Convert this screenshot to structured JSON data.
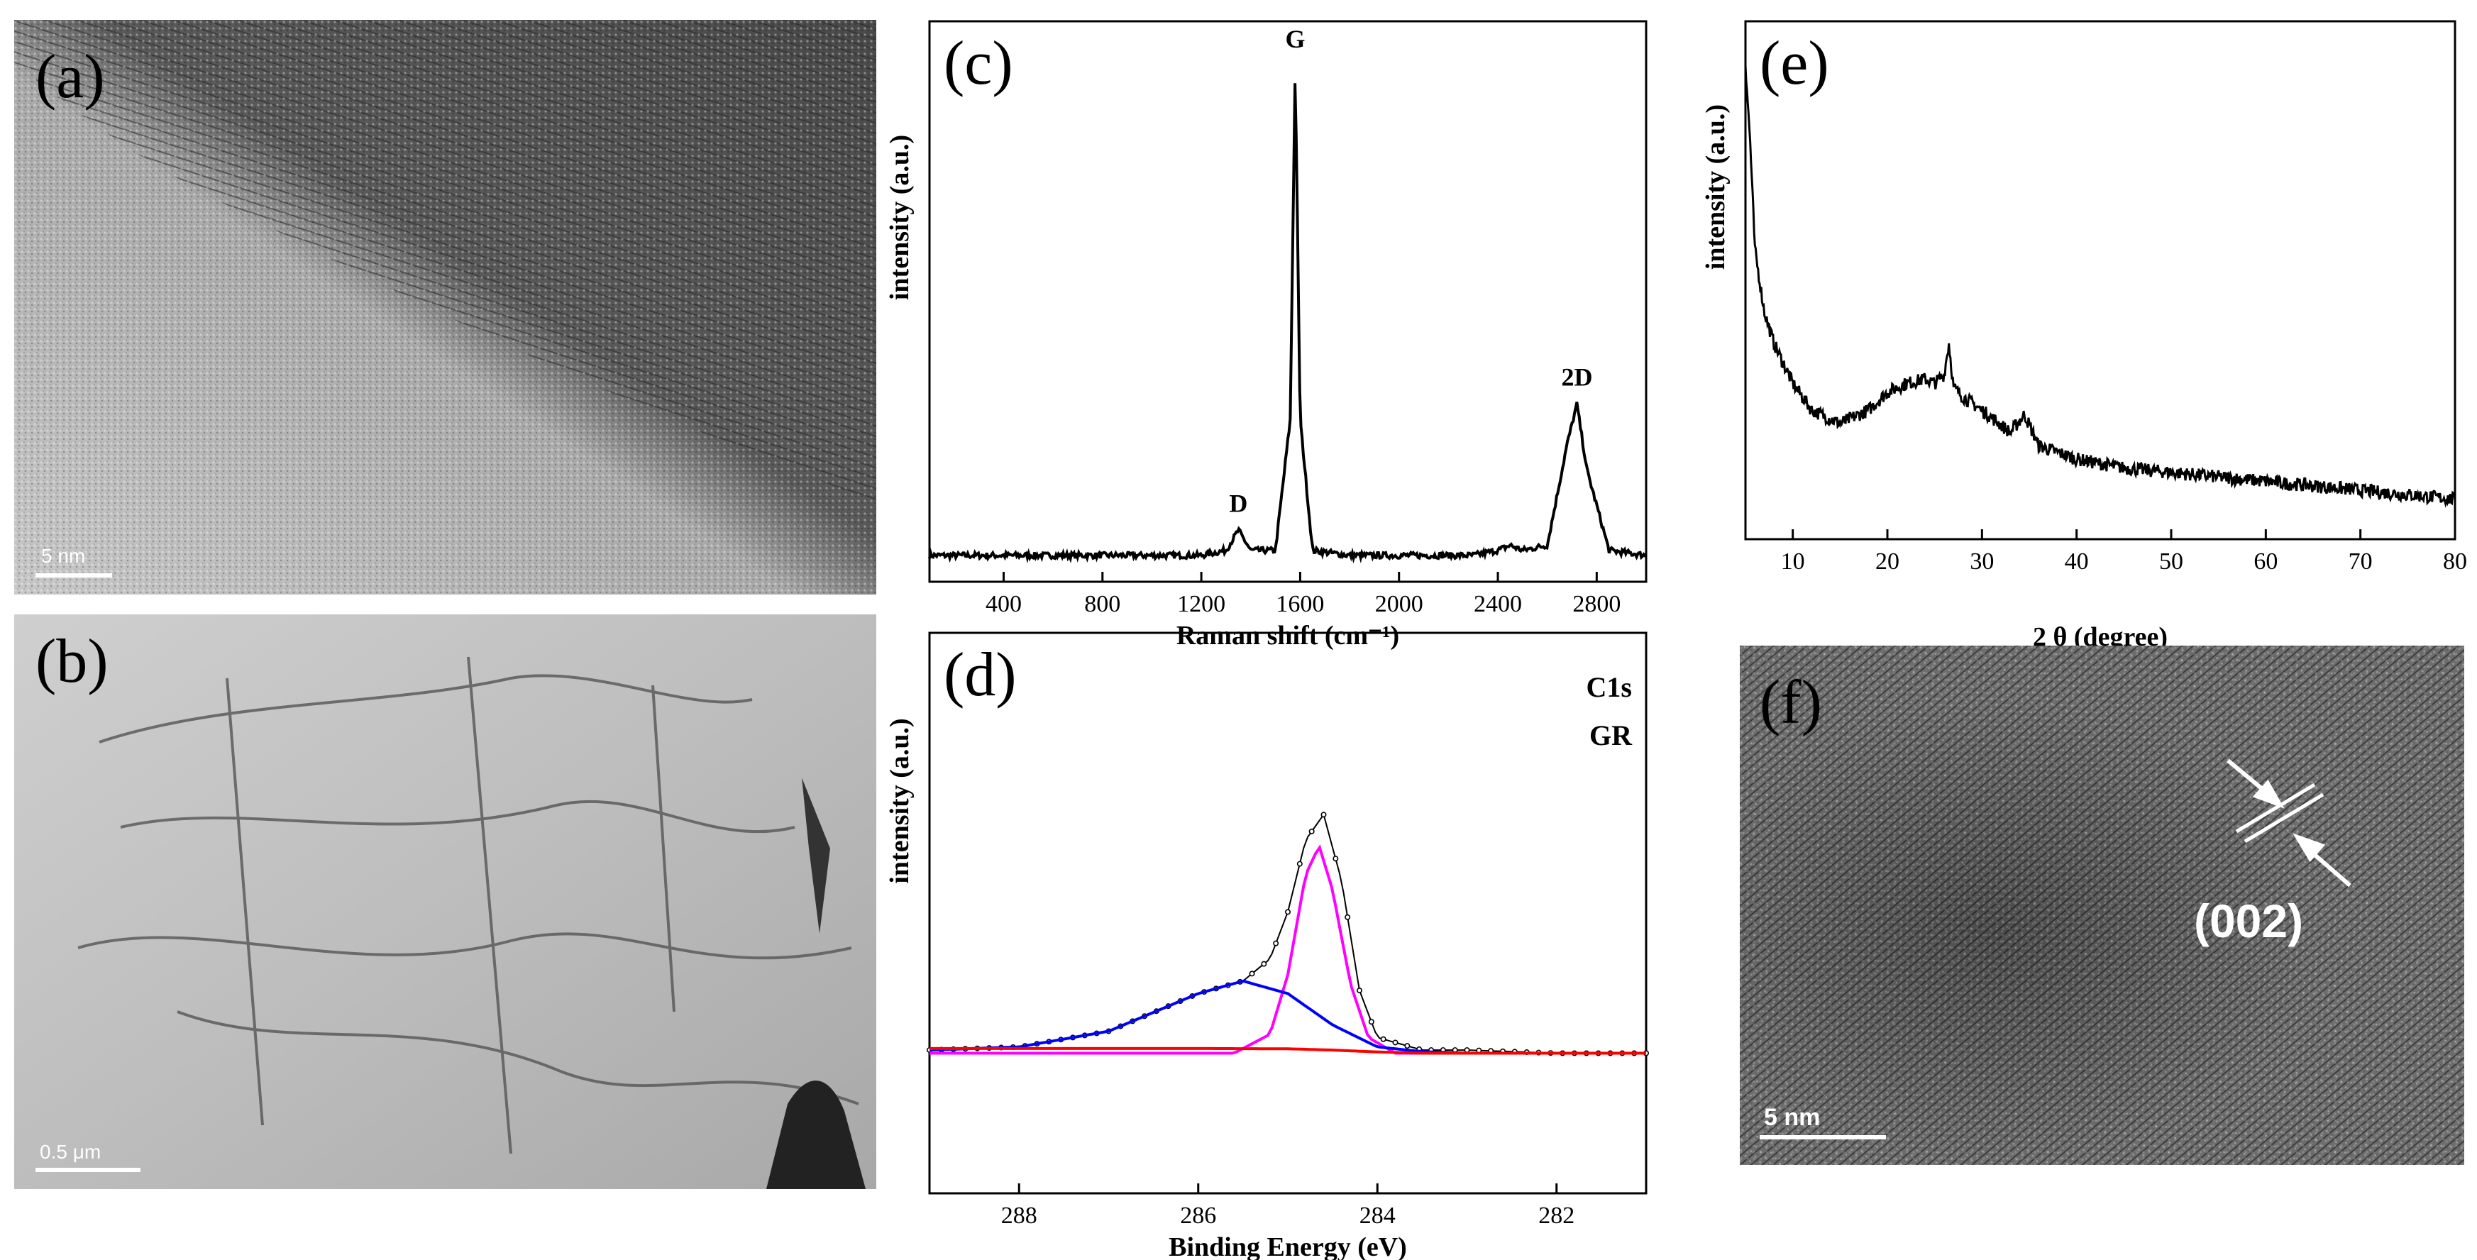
{
  "panels": {
    "a": {
      "label": "(a)",
      "scale_bar": "5 nm"
    },
    "b": {
      "label": "(b)",
      "scale_bar": "0.5 μm"
    },
    "f": {
      "label": "(f)",
      "scale_bar": "5 nm",
      "plane": "(002)"
    }
  },
  "chart_data": [
    {
      "id": "c",
      "panel_label": "(c)",
      "type": "line",
      "xlabel": "Raman shift (cm⁻¹)",
      "ylabel": "intensity (a.u.)",
      "xlim": [
        100,
        3000
      ],
      "xticks": [
        400,
        800,
        1200,
        1600,
        2000,
        2400,
        2800
      ],
      "yticks": [],
      "grid": false,
      "annotations": [
        {
          "text": "D",
          "x": 1350
        },
        {
          "text": "G",
          "x": 1580
        },
        {
          "text": "2D",
          "x": 2720
        }
      ],
      "series": [
        {
          "x": [
            100,
            400,
            800,
            1200,
            1300,
            1350,
            1400,
            1500,
            1560,
            1580,
            1600,
            1650,
            1800,
            2000,
            2300,
            2400,
            2450,
            2500,
            2600,
            2680,
            2720,
            2760,
            2850,
            3000
          ],
          "y": [
            0.03,
            0.03,
            0.03,
            0.03,
            0.04,
            0.08,
            0.04,
            0.04,
            0.3,
            1.0,
            0.3,
            0.04,
            0.03,
            0.03,
            0.03,
            0.04,
            0.05,
            0.04,
            0.05,
            0.25,
            0.33,
            0.2,
            0.04,
            0.03
          ]
        }
      ]
    },
    {
      "id": "d",
      "panel_label": "(d)",
      "type": "line",
      "xlabel": "Binding Energy (eV)",
      "ylabel": "intensity (a.u.)",
      "xlim": [
        289,
        281
      ],
      "xticks": [
        288,
        286,
        284,
        282
      ],
      "yticks": [],
      "grid": false,
      "annotations": [
        {
          "text": "C1s"
        },
        {
          "text": "GR"
        }
      ],
      "series": [
        {
          "style": "data points",
          "x": [
            289,
            288,
            287,
            286.5,
            286,
            285.5,
            285.2,
            285,
            284.8,
            284.6,
            284.4,
            284.2,
            284,
            283.5,
            283,
            282,
            281
          ],
          "y": [
            0.01,
            0.02,
            0.07,
            0.13,
            0.19,
            0.23,
            0.3,
            0.45,
            0.68,
            0.76,
            0.55,
            0.2,
            0.05,
            0.01,
            0.01,
            0.0,
            0.0
          ]
        },
        {
          "color": "#ff00ff",
          "x": [
            289,
            285.6,
            285.2,
            285.0,
            284.8,
            284.65,
            284.5,
            284.3,
            284.1,
            283.8,
            281
          ],
          "y": [
            0.0,
            0.0,
            0.06,
            0.25,
            0.57,
            0.66,
            0.52,
            0.22,
            0.05,
            0.0,
            0.0
          ]
        },
        {
          "color": "#0000ff",
          "x": [
            289,
            288,
            287,
            286.5,
            286,
            285.5,
            285,
            284.5,
            284,
            283.5,
            283,
            281
          ],
          "y": [
            0.01,
            0.02,
            0.07,
            0.13,
            0.19,
            0.23,
            0.19,
            0.09,
            0.02,
            0.005,
            0.0,
            0.0
          ]
        },
        {
          "color": "#ff0000",
          "x": [
            289,
            286,
            285,
            284.5,
            284,
            283.5,
            281
          ],
          "y": [
            0.015,
            0.015,
            0.014,
            0.01,
            0.004,
            0.0,
            0.0
          ]
        }
      ]
    },
    {
      "id": "e",
      "panel_label": "(e)",
      "type": "line",
      "xlabel": "2 θ (degree)",
      "ylabel": "intensity (a.u.)",
      "xlim": [
        5,
        80
      ],
      "xticks": [
        10,
        20,
        30,
        40,
        50,
        60,
        70,
        80
      ],
      "yticks": [],
      "grid": false,
      "series": [
        {
          "x": [
            5,
            5.5,
            6,
            7,
            8,
            10,
            12,
            15,
            18,
            20,
            22,
            24,
            25,
            26,
            26.5,
            27,
            28,
            30,
            33,
            34.5,
            36,
            40,
            45,
            50,
            55,
            60,
            65,
            70,
            75,
            80
          ],
          "y": [
            1.0,
            0.82,
            0.58,
            0.44,
            0.37,
            0.28,
            0.22,
            0.19,
            0.22,
            0.26,
            0.28,
            0.29,
            0.28,
            0.3,
            0.37,
            0.27,
            0.25,
            0.22,
            0.17,
            0.21,
            0.14,
            0.11,
            0.09,
            0.08,
            0.07,
            0.06,
            0.05,
            0.04,
            0.03,
            0.02
          ]
        }
      ]
    }
  ]
}
